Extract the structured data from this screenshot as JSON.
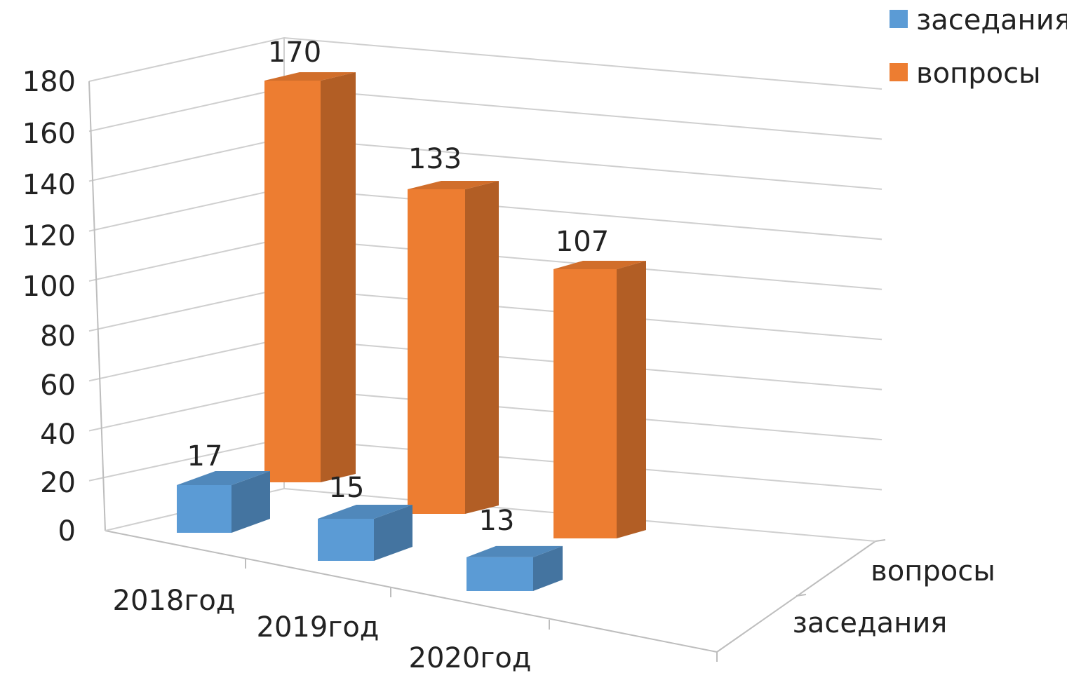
{
  "chart_data": {
    "type": "bar",
    "style": "3d-clustered-depth",
    "categories": [
      "2018год",
      "2019год",
      "2020год"
    ],
    "series": [
      {
        "name": "заседания",
        "values": [
          17,
          15,
          13
        ],
        "color": "#5b9bd5"
      },
      {
        "name": "вопросы",
        "values": [
          170,
          133,
          107
        ],
        "color": "#ed7d31"
      }
    ],
    "depth_labels": [
      "вопросы",
      "заседания"
    ],
    "y_ticks": [
      0,
      20,
      40,
      60,
      80,
      100,
      120,
      140,
      160,
      180
    ],
    "ylim": [
      0,
      180
    ],
    "grid": true,
    "legend": "top-right"
  }
}
